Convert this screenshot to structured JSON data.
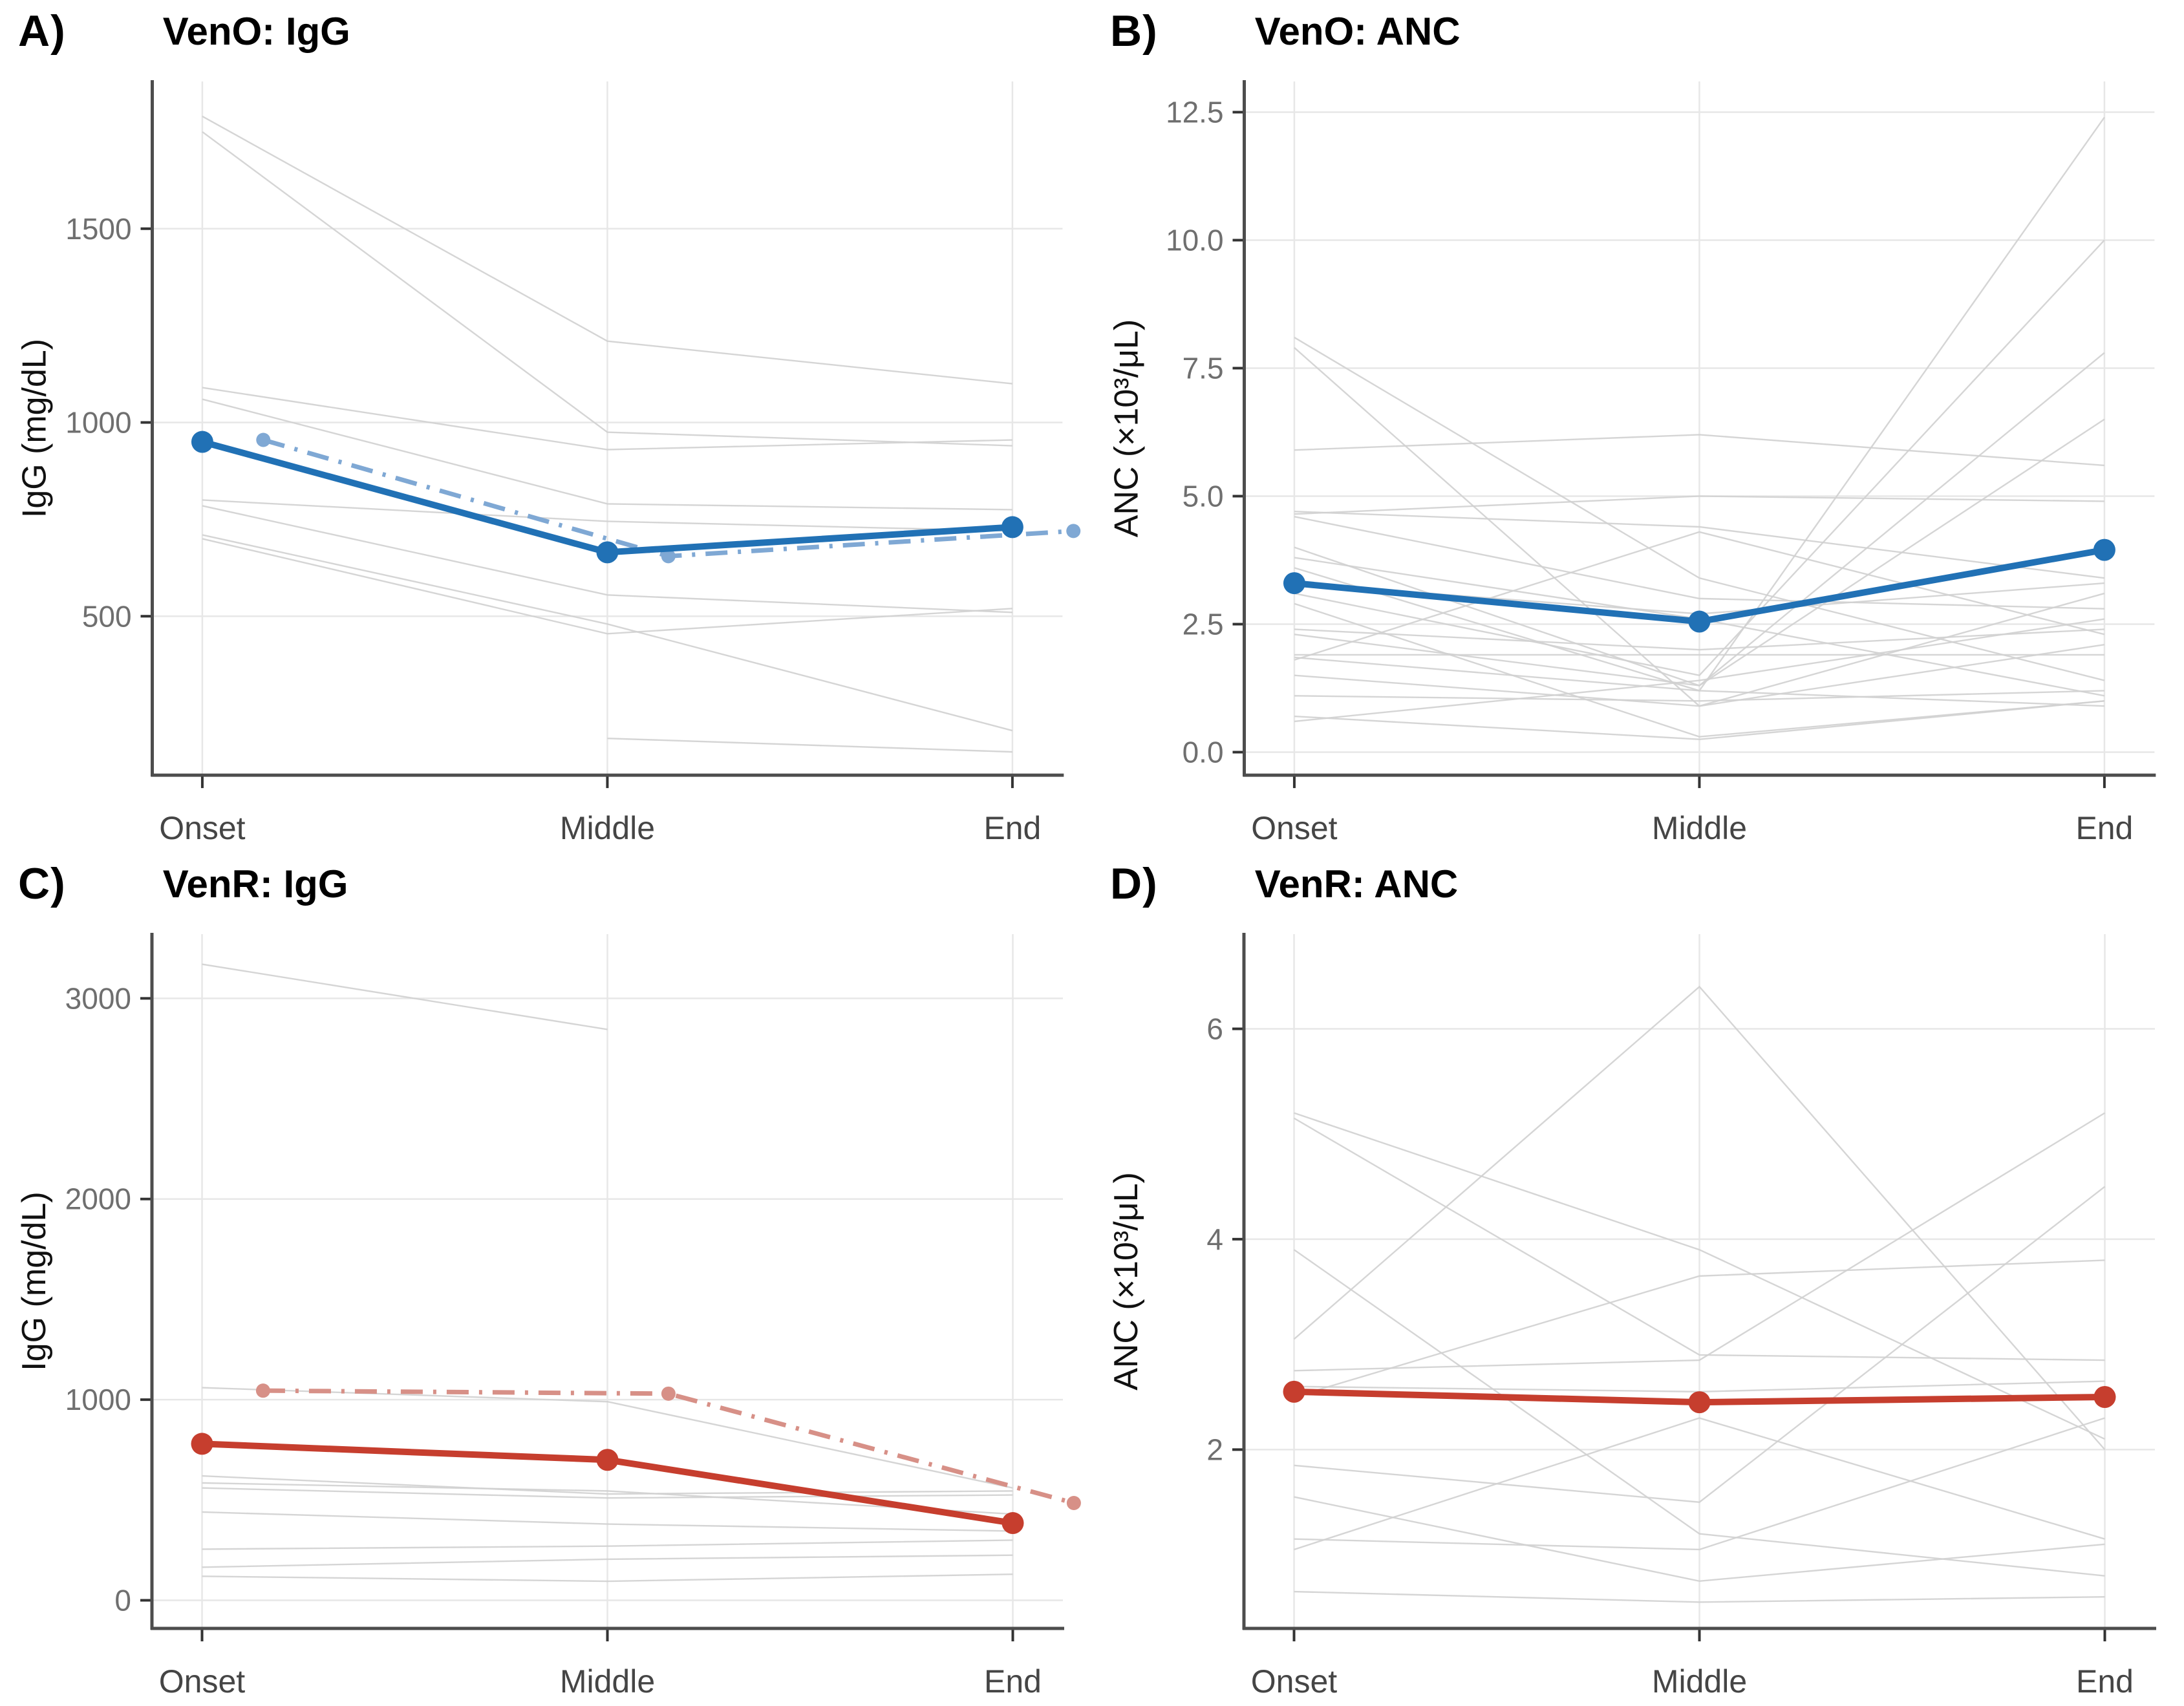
{
  "figure": {
    "background": "#ffffff",
    "layout": "2x2-panel-grid"
  },
  "colors": {
    "blue": "#2171b5",
    "blue_light": "#7fa8d4",
    "red": "#c63e2e",
    "red_light": "#d79087",
    "gray_line": "#d0d0d0",
    "gridline": "#e7e7e7",
    "axis": "#4d4d4d",
    "tick_mark": "#333333",
    "y_tick_text": "#6f6f6f",
    "x_tick_text": "#454545",
    "axis_label_text": "#111111",
    "title_text": "#000000"
  },
  "chart_data": [
    {
      "type": "line",
      "panel_letter": "A)",
      "title": "VenO: IgG",
      "xlabel": "",
      "ylabel": "IgG (mg/dL)",
      "categories": [
        "Onset",
        "Middle",
        "End"
      ],
      "ylim": [
        90,
        1880
      ],
      "yticks": [
        {
          "v": 500,
          "label": "500"
        },
        {
          "v": 1000,
          "label": "1000"
        },
        {
          "v": 1500,
          "label": "1500"
        }
      ],
      "grid": true,
      "legend": "none",
      "series": [
        {
          "name": "individual-patients",
          "style": "spaghetti",
          "color_key": "gray_line",
          "values_set": [
            [
              1790,
              1210,
              1100
            ],
            [
              1750,
              975,
              940
            ],
            [
              1090,
              930,
              955
            ],
            [
              1060,
              790,
              775
            ],
            [
              800,
              745,
              720
            ],
            [
              785,
              555,
              510
            ],
            [
              710,
              480,
              205
            ],
            [
              700,
              455,
              520
            ],
            [
              null,
              185,
              150
            ]
          ]
        },
        {
          "name": "cohort-summary-dashed",
          "style": "dashdot-points",
          "color_key": "blue_light",
          "x_offset_frac": 0.067,
          "values": [
            955,
            655,
            720
          ]
        },
        {
          "name": "cohort-summary-solid",
          "style": "solid-points",
          "color_key": "blue",
          "values": [
            950,
            665,
            730
          ]
        }
      ]
    },
    {
      "type": "line",
      "panel_letter": "B)",
      "title": "VenO: ANC",
      "xlabel": "",
      "ylabel": "ANC (×10³/μL)",
      "categories": [
        "Onset",
        "Middle",
        "End"
      ],
      "ylim": [
        -0.45,
        13.1
      ],
      "yticks": [
        {
          "v": 0,
          "label": "0.0"
        },
        {
          "v": 2.5,
          "label": "2.5"
        },
        {
          "v": 5,
          "label": "5.0"
        },
        {
          "v": 7.5,
          "label": "7.5"
        },
        {
          "v": 10,
          "label": "10.0"
        },
        {
          "v": 12.5,
          "label": "12.5"
        }
      ],
      "grid": true,
      "legend": "none",
      "series": [
        {
          "name": "individual-patients",
          "style": "spaghetti",
          "color_key": "gray_line",
          "values_set": [
            [
              8.1,
              3.4,
              1.4
            ],
            [
              7.9,
              0.9,
              2.1
            ],
            [
              5.9,
              6.2,
              5.6
            ],
            [
              4.7,
              4.4,
              3.4
            ],
            [
              4.65,
              5.0,
              4.9
            ],
            [
              4.6,
              3.0,
              2.8
            ],
            [
              4.0,
              1.3,
              7.8
            ],
            [
              3.8,
              2.6,
              1.1
            ],
            [
              3.6,
              1.2,
              12.4
            ],
            [
              3.3,
              2.7,
              3.3
            ],
            [
              3.1,
              1.5,
              10.0
            ],
            [
              2.9,
              0.3,
              1.0
            ],
            [
              2.4,
              2.0,
              2.4
            ],
            [
              2.3,
              1.3,
              6.5
            ],
            [
              1.9,
              1.9,
              1.9
            ],
            [
              1.85,
              1.2,
              0.9
            ],
            [
              1.8,
              4.3,
              2.3
            ],
            [
              1.5,
              0.9,
              3.1
            ],
            [
              1.1,
              1.0,
              1.2
            ],
            [
              0.7,
              0.25,
              1.0
            ],
            [
              0.6,
              1.4,
              2.6
            ]
          ]
        },
        {
          "name": "cohort-summary-solid",
          "style": "solid-points",
          "color_key": "blue",
          "values": [
            3.3,
            2.55,
            3.95
          ]
        }
      ]
    },
    {
      "type": "line",
      "panel_letter": "C)",
      "title": "VenR: IgG",
      "xlabel": "",
      "ylabel": "IgG (mg/dL)",
      "categories": [
        "Onset",
        "Middle",
        "End"
      ],
      "ylim": [
        -140,
        3320
      ],
      "yticks": [
        {
          "v": 0,
          "label": "0"
        },
        {
          "v": 1000,
          "label": "1000"
        },
        {
          "v": 2000,
          "label": "2000"
        },
        {
          "v": 3000,
          "label": "3000"
        }
      ],
      "grid": true,
      "legend": "none",
      "series": [
        {
          "name": "individual-patients",
          "style": "spaghetti",
          "color_key": "gray_line",
          "values_set": [
            [
              3170,
              2845,
              null
            ],
            [
              1060,
              990,
              560
            ],
            [
              620,
              530,
              545
            ],
            [
              585,
              545,
              430
            ],
            [
              560,
              510,
              525
            ],
            [
              440,
              380,
              345
            ],
            [
              255,
              270,
              300
            ],
            [
              165,
              205,
              225
            ],
            [
              120,
              95,
              130
            ]
          ]
        },
        {
          "name": "cohort-summary-dashed",
          "style": "dashdot-points",
          "color_key": "red_light",
          "x_offset_frac": 0.067,
          "values": [
            1045,
            1030,
            485
          ]
        },
        {
          "name": "cohort-summary-solid",
          "style": "solid-points",
          "color_key": "red",
          "values": [
            780,
            700,
            385
          ]
        }
      ]
    },
    {
      "type": "line",
      "panel_letter": "D)",
      "title": "VenR: ANC",
      "xlabel": "",
      "ylabel": "ANC (×10³/μL)",
      "categories": [
        "Onset",
        "Middle",
        "End"
      ],
      "ylim": [
        0.3,
        6.9
      ],
      "yticks": [
        {
          "v": 2,
          "label": "2"
        },
        {
          "v": 4,
          "label": "4"
        },
        {
          "v": 6,
          "label": "6"
        }
      ],
      "grid": true,
      "legend": "none",
      "series": [
        {
          "name": "individual-patients",
          "style": "spaghetti",
          "color_key": "gray_line",
          "values_set": [
            [
              5.2,
              3.9,
              2.1
            ],
            [
              5.15,
              2.9,
              2.85
            ],
            [
              3.9,
              1.2,
              0.8
            ],
            [
              3.05,
              6.4,
              2.0
            ],
            [
              2.75,
              2.85,
              5.2
            ],
            [
              2.6,
              2.55,
              2.65
            ],
            [
              2.5,
              3.65,
              3.8
            ],
            [
              1.85,
              1.5,
              4.5
            ],
            [
              1.55,
              0.75,
              1.1
            ],
            [
              1.15,
              1.05,
              2.3
            ],
            [
              1.05,
              2.3,
              1.15
            ],
            [
              0.65,
              0.55,
              0.6
            ]
          ]
        },
        {
          "name": "cohort-summary-solid",
          "style": "solid-points",
          "color_key": "red",
          "values": [
            2.55,
            2.45,
            2.5
          ]
        }
      ]
    }
  ]
}
